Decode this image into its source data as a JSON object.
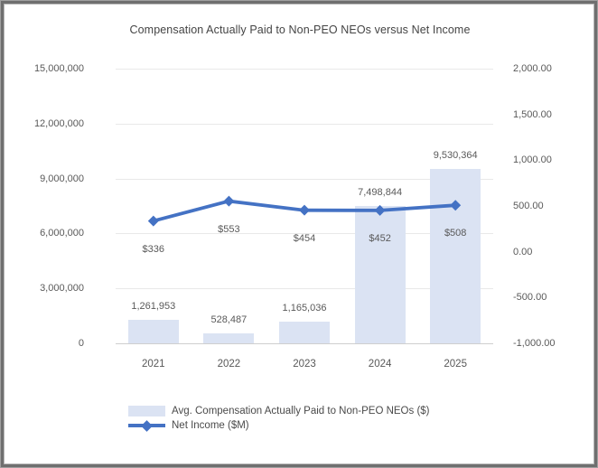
{
  "frame": {
    "background": "#ffffff",
    "border_color": "#6f6f6f"
  },
  "chart_data": {
    "type": "combo",
    "title": "Compensation Actually Paid to Non-PEO NEOs versus Net Income",
    "categories": [
      "2021",
      "2022",
      "2023",
      "2024",
      "2025"
    ],
    "series": [
      {
        "name": "Avg. Compensation Actually Paid to Non-PEO NEOs ($)",
        "type": "bar",
        "axis": "left",
        "values": [
          1261953,
          528487,
          1165036,
          7498844,
          9530364
        ],
        "data_labels": [
          "1,261,953",
          "528,487",
          "1,165,036",
          "7,498,844",
          "9,530,364"
        ],
        "color": "#dbe3f3"
      },
      {
        "name": "Net Income ($M)",
        "type": "line",
        "axis": "right",
        "values": [
          336,
          553,
          454,
          452,
          508
        ],
        "data_labels": [
          "$336",
          "$553",
          "$454",
          "$452",
          "$508"
        ],
        "color": "#4472c4"
      }
    ],
    "left_axis": {
      "min": 0,
      "max": 15000000,
      "step": 3000000,
      "tick_labels_top_to_bottom": [
        "15,000,000",
        "12,000,000",
        "9,000,000",
        "6,000,000",
        "3,000,000",
        "0"
      ]
    },
    "right_axis": {
      "min": -1000,
      "max": 2000,
      "step": 500,
      "tick_labels_top_to_bottom": [
        "2,000.00",
        "1,500.00",
        "1,000.00",
        "500.00",
        "0.00",
        "-500.00",
        "-1,000.00"
      ]
    },
    "grid": true,
    "legend_position": "bottom",
    "colors": {
      "bar_fill": "#dbe3f3",
      "line_stroke": "#4472c4",
      "gridline": "#e9e9e9",
      "axis_line": "#cfcfcf",
      "tick_text": "#595959",
      "title_text": "#444444"
    }
  }
}
